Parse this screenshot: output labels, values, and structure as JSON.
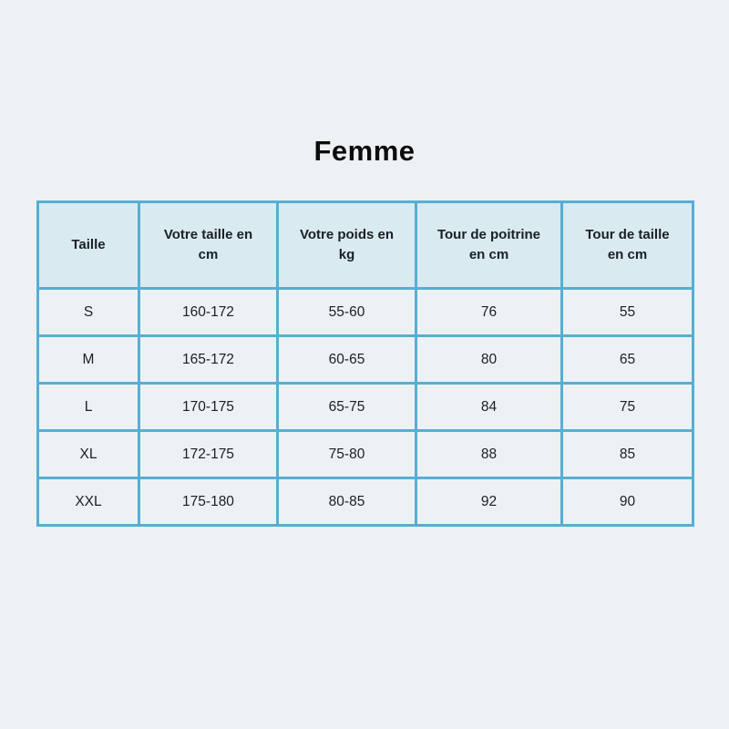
{
  "page": {
    "title": "Femme"
  },
  "colors": {
    "page_background": "#edf1f4",
    "table_border": "#57aed2",
    "header_background": "#d9eaf1",
    "cell_background": "#edf1f4",
    "text": "#1b1f23",
    "title_text": "#0c0c0c"
  },
  "table": {
    "headers": [
      "Taille",
      "Votre taille en cm",
      "Votre poids en kg",
      "Tour de poitrine en cm",
      "Tour de taille en cm"
    ],
    "rows": [
      [
        "S",
        "160-172",
        "55-60",
        "76",
        "55"
      ],
      [
        "M",
        "165-172",
        "60-65",
        "80",
        "65"
      ],
      [
        "L",
        "170-175",
        "65-75",
        "84",
        "75"
      ],
      [
        "XL",
        "172-175",
        "75-80",
        "88",
        "85"
      ],
      [
        "XXL",
        "175-180",
        "80-85",
        "92",
        "90"
      ]
    ]
  },
  "chart_data": {
    "type": "table",
    "title": "Femme",
    "columns": [
      "Taille",
      "Votre taille en cm",
      "Votre poids en kg",
      "Tour de poitrine en cm",
      "Tour de taille en cm"
    ],
    "rows": [
      [
        "S",
        "160-172",
        "55-60",
        "76",
        "55"
      ],
      [
        "M",
        "165-172",
        "60-65",
        "80",
        "65"
      ],
      [
        "L",
        "170-175",
        "65-75",
        "84",
        "75"
      ],
      [
        "XL",
        "172-175",
        "75-80",
        "88",
        "85"
      ],
      [
        "XXL",
        "175-180",
        "80-85",
        "92",
        "90"
      ]
    ]
  }
}
